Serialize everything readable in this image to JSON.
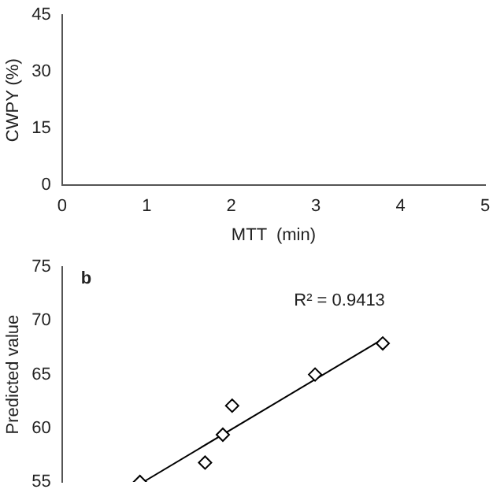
{
  "chart_data": [
    {
      "type": "scatter",
      "xlabel": "MTT  (min)",
      "ylabel": "CWPY (%)",
      "xlim": [
        0,
        5
      ],
      "xticks": [
        0,
        1,
        2,
        3,
        4,
        5
      ],
      "ylim": [
        0,
        45
      ],
      "yticks": [
        0,
        15,
        30,
        45
      ],
      "grid": false,
      "legend": false
    },
    {
      "type": "scatter",
      "ylabel": "Predicted value",
      "annotations": [
        "b",
        "R² = 0.9413"
      ],
      "xlim": [
        0,
        5
      ],
      "ylim": [
        55,
        75
      ],
      "yticks": [
        55,
        60,
        65,
        70,
        75
      ],
      "tick_labels": "y",
      "grid": false,
      "legend": false,
      "marker": "diamond",
      "series": [
        {
          "type": "scatter",
          "color": "#000000",
          "x": [
            0.92,
            1.69,
            1.9,
            2.01,
            2.99,
            3.79
          ],
          "values": [
            55.0,
            56.8,
            59.4,
            62.1,
            65.0,
            67.9
          ]
        },
        {
          "type": "line",
          "color": "#000000",
          "line_style": "solid",
          "marker": "none",
          "x": [
            0.96,
            3.79
          ],
          "values": [
            55.0,
            68.3
          ]
        }
      ]
    }
  ]
}
